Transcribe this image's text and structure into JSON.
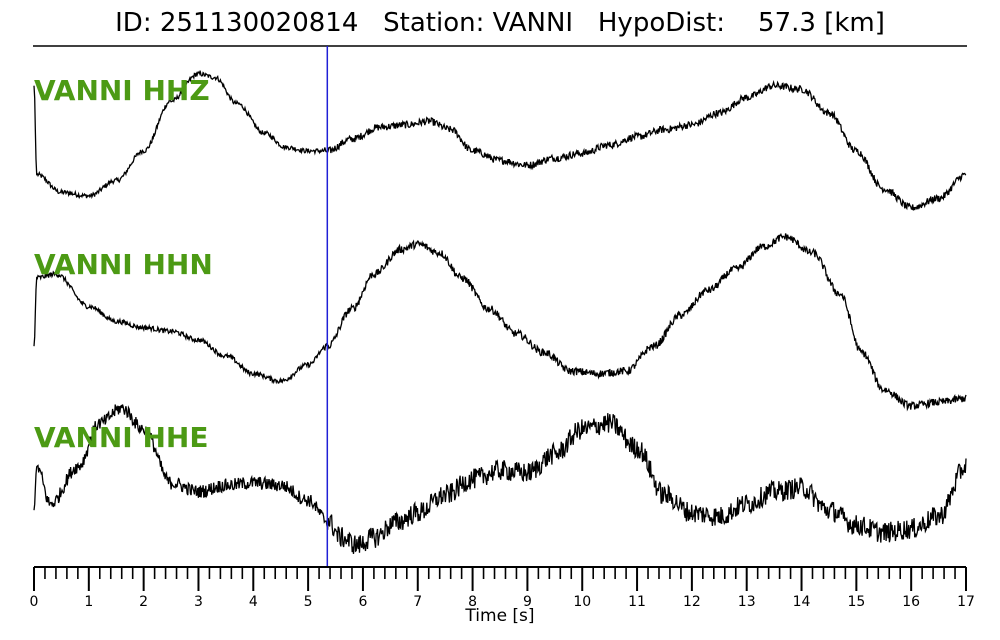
{
  "chart_data": {
    "type": "line",
    "title": "ID: 251130020814   Station: VANNI   HypoDist:    57.3 [km]",
    "xlabel": "Time [s]",
    "xlim": [
      0,
      17
    ],
    "x_ticks": [
      "0",
      "1",
      "2",
      "3",
      "4",
      "5",
      "6",
      "7",
      "8",
      "9",
      "10",
      "11",
      "12",
      "13",
      "14",
      "15",
      "16",
      "17"
    ],
    "minor_tick_step": 0.2,
    "pick_marker_time": 5.35,
    "label_color": "#4c9a14",
    "pick_color": "#1f1fd6",
    "trace_color": "#000000",
    "series": [
      {
        "name": "VANNI HHZ",
        "noise": 0.022,
        "t": [
          0,
          0.05,
          0.5,
          1.0,
          1.5,
          2.0,
          2.5,
          3.0,
          3.3,
          3.7,
          4.2,
          4.6,
          5.0,
          5.35,
          5.8,
          6.3,
          6.8,
          7.2,
          7.6,
          8.0,
          8.5,
          9.0,
          9.5,
          10.0,
          10.5,
          11.0,
          11.5,
          12.0,
          12.5,
          13.0,
          13.5,
          14.0,
          14.5,
          15.0,
          15.5,
          16.0,
          16.5,
          17.0
        ],
        "v": [
          0.85,
          0.1,
          -0.05,
          -0.08,
          0.05,
          0.3,
          0.72,
          0.95,
          0.92,
          0.7,
          0.45,
          0.33,
          0.3,
          0.3,
          0.4,
          0.5,
          0.52,
          0.55,
          0.48,
          0.3,
          0.22,
          0.18,
          0.24,
          0.28,
          0.35,
          0.42,
          0.48,
          0.52,
          0.62,
          0.75,
          0.85,
          0.82,
          0.62,
          0.3,
          -0.02,
          -0.18,
          -0.1,
          0.1
        ]
      },
      {
        "name": "VANNI HHN",
        "noise": 0.022,
        "t": [
          0,
          0.05,
          0.4,
          1.0,
          1.5,
          2.0,
          2.5,
          3.0,
          3.5,
          4.0,
          4.5,
          5.0,
          5.35,
          5.8,
          6.2,
          6.7,
          7.0,
          7.4,
          7.8,
          8.3,
          8.8,
          9.3,
          9.8,
          10.3,
          10.8,
          11.3,
          11.8,
          12.3,
          12.8,
          13.3,
          13.7,
          14.2,
          14.7,
          15.1,
          15.5,
          16.0,
          16.5,
          17.0
        ],
        "v": [
          0.1,
          0.65,
          0.68,
          0.42,
          0.3,
          0.25,
          0.22,
          0.15,
          0.02,
          -0.12,
          -0.18,
          -0.05,
          0.1,
          0.4,
          0.68,
          0.88,
          0.92,
          0.85,
          0.65,
          0.4,
          0.2,
          0.05,
          -0.1,
          -0.12,
          -0.1,
          0.1,
          0.35,
          0.55,
          0.72,
          0.9,
          0.98,
          0.85,
          0.52,
          0.05,
          -0.25,
          -0.38,
          -0.35,
          -0.32
        ]
      },
      {
        "name": "VANNI HHE",
        "noise": 0.06,
        "t": [
          0,
          0.05,
          0.3,
          0.8,
          1.2,
          1.6,
          2.0,
          2.5,
          3.0,
          3.5,
          4.0,
          4.5,
          5.0,
          5.35,
          5.6,
          5.9,
          6.2,
          6.6,
          7.0,
          7.5,
          8.0,
          8.5,
          9.0,
          9.5,
          10.0,
          10.5,
          11.0,
          11.5,
          12.0,
          12.5,
          13.0,
          13.5,
          14.0,
          14.5,
          15.0,
          15.5,
          16.0,
          16.5,
          17.0
        ],
        "v": [
          0.1,
          0.45,
          0.15,
          0.45,
          0.8,
          0.92,
          0.75,
          0.32,
          0.25,
          0.3,
          0.32,
          0.3,
          0.18,
          0.02,
          -0.12,
          -0.18,
          -0.12,
          0.0,
          0.08,
          0.22,
          0.35,
          0.42,
          0.4,
          0.55,
          0.75,
          0.8,
          0.6,
          0.22,
          0.08,
          0.05,
          0.15,
          0.25,
          0.28,
          0.1,
          -0.02,
          -0.08,
          -0.05,
          0.05,
          0.45
        ]
      }
    ]
  }
}
